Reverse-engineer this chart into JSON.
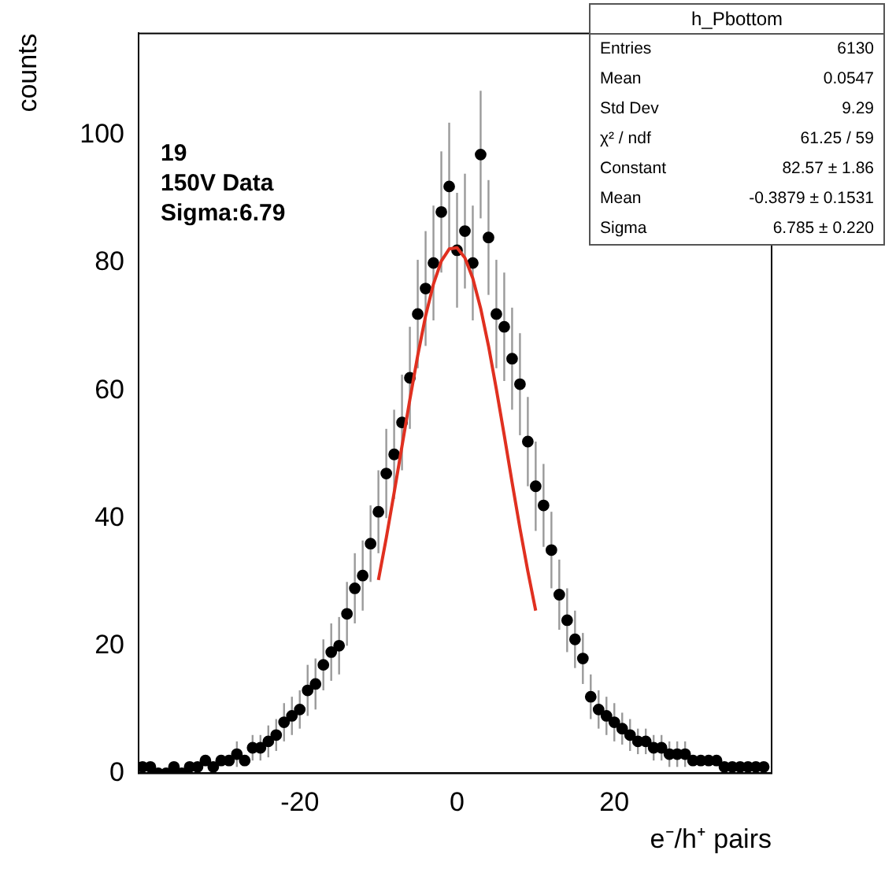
{
  "chart_data": {
    "type": "scatter",
    "xlabel": "e⁻/h⁺ pairs",
    "ylabel": "counts",
    "xlim": [
      -40.5,
      40
    ],
    "ylim": [
      0,
      116
    ],
    "xticks": [
      -20,
      0,
      20
    ],
    "yticks": [
      0,
      20,
      40,
      60,
      80,
      100
    ],
    "grid": false,
    "legend": false,
    "marker": "circle",
    "annotations": [
      "19",
      "150V Data",
      "Sigma:6.79",
      "h_Pbottom",
      "Entries  6130",
      "Mean  0.0547",
      "Std Dev  9.29",
      "χ² / ndf  61.25 / 59",
      "Constant  82.57 ± 1.86",
      "Mean  -0.3879 ± 0.1531",
      "Sigma  6.785 ± 0.220"
    ],
    "series": [
      {
        "color": "#000000",
        "x": [
          -40,
          -39,
          -38,
          -37,
          -36,
          -35,
          -34,
          -33,
          -32,
          -31,
          -30,
          -29,
          -28,
          -27,
          -26,
          -25,
          -24,
          -23,
          -22,
          -21,
          -20,
          -19,
          -18,
          -17,
          -16,
          -15,
          -14,
          -13,
          -12,
          -11,
          -10,
          -9,
          -8,
          -7,
          -6,
          -5,
          -4,
          -3,
          -2,
          -1,
          0,
          1,
          2,
          3,
          4,
          5,
          6,
          7,
          8,
          9,
          10,
          11,
          12,
          13,
          14,
          15,
          16,
          17,
          18,
          19,
          20,
          21,
          22,
          23,
          24,
          25,
          26,
          27,
          28,
          29,
          30,
          31,
          32,
          33,
          34,
          35,
          36,
          37,
          38,
          39
        ],
        "values": [
          1,
          1,
          0,
          0,
          1,
          0,
          1,
          1,
          2,
          1,
          2,
          2,
          3,
          2,
          4,
          4,
          5,
          6,
          8,
          9,
          10,
          13,
          14,
          17,
          19,
          20,
          25,
          29,
          31,
          36,
          41,
          47,
          50,
          55,
          62,
          72,
          76,
          80,
          88,
          92,
          82,
          85,
          80,
          97,
          84,
          72,
          70,
          65,
          61,
          52,
          45,
          42,
          35,
          28,
          24,
          21,
          18,
          12,
          10,
          9,
          8,
          7,
          6,
          5,
          5,
          4,
          4,
          3,
          3,
          3,
          2,
          2,
          2,
          2,
          1,
          1,
          1,
          1,
          1,
          1
        ],
        "errors": [
          null,
          null,
          null,
          null,
          null,
          null,
          null,
          null,
          null,
          null,
          null,
          null,
          2,
          null,
          2,
          2,
          2.5,
          2.5,
          3,
          3,
          3,
          4,
          4,
          4,
          4.5,
          4.5,
          5,
          5.5,
          5.5,
          6,
          6.5,
          7,
          7,
          7.5,
          8,
          8.5,
          9,
          9,
          9.5,
          10,
          9,
          9,
          9,
          10,
          9,
          8.5,
          8.5,
          8,
          8,
          7,
          7,
          6.5,
          6,
          5.5,
          5,
          4.5,
          4,
          3.5,
          3,
          3,
          3,
          2.5,
          2.5,
          2,
          2,
          2,
          2,
          2,
          2,
          2,
          null,
          null,
          null,
          null,
          null,
          null,
          null,
          null,
          null,
          null
        ]
      },
      {
        "type": "line",
        "color": "#e03020",
        "marker": "none",
        "x": [
          -10,
          -9,
          -8,
          -7,
          -6,
          -5,
          -4,
          -3,
          -2,
          -1,
          0,
          1,
          2,
          3,
          4,
          5,
          6,
          7,
          8,
          9,
          10
        ],
        "values": [
          30.3,
          36.9,
          44.0,
          51.3,
          58.6,
          65.5,
          71.7,
          76.7,
          80.3,
          82.2,
          82.4,
          80.8,
          77.6,
          72.9,
          67.0,
          60.2,
          53.0,
          45.6,
          38.4,
          31.7,
          25.5
        ]
      }
    ]
  }
}
